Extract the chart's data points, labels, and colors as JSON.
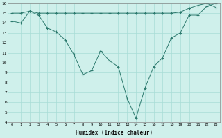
{
  "line1_x": [
    0,
    1,
    2,
    3,
    4,
    5,
    6,
    7,
    8,
    9,
    10,
    11,
    12,
    13,
    14,
    15,
    16,
    17,
    18,
    19,
    20,
    21,
    22,
    23
  ],
  "line1_y": [
    14.2,
    14.0,
    15.2,
    14.8,
    13.5,
    13.1,
    12.3,
    10.8,
    8.8,
    9.2,
    11.2,
    10.2,
    9.6,
    6.4,
    4.4,
    7.4,
    9.6,
    10.5,
    12.5,
    13.0,
    14.8,
    14.8,
    15.7,
    16.0
  ],
  "line2_x": [
    0,
    1,
    2,
    3,
    4,
    5,
    6,
    7,
    8,
    9,
    10,
    11,
    12,
    13,
    14,
    15,
    16,
    17,
    18,
    19,
    20,
    21,
    22,
    23
  ],
  "line2_y": [
    15.0,
    15.0,
    15.2,
    15.0,
    15.0,
    15.0,
    15.0,
    15.0,
    15.0,
    15.0,
    15.0,
    15.0,
    15.0,
    15.0,
    15.0,
    15.0,
    15.0,
    15.0,
    15.0,
    15.1,
    15.5,
    15.8,
    16.0,
    15.6
  ],
  "line_color": "#2d7a6e",
  "bg_color": "#cff0eb",
  "grid_color": "#a8ddd6",
  "xlabel": "Humidex (Indice chaleur)",
  "ylim": [
    4,
    16
  ],
  "xlim": [
    0,
    23
  ],
  "yticks": [
    4,
    5,
    6,
    7,
    8,
    9,
    10,
    11,
    12,
    13,
    14,
    15,
    16
  ],
  "xticks": [
    0,
    1,
    2,
    3,
    4,
    5,
    6,
    7,
    8,
    9,
    10,
    11,
    12,
    13,
    14,
    15,
    16,
    17,
    18,
    19,
    20,
    21,
    22,
    23
  ]
}
